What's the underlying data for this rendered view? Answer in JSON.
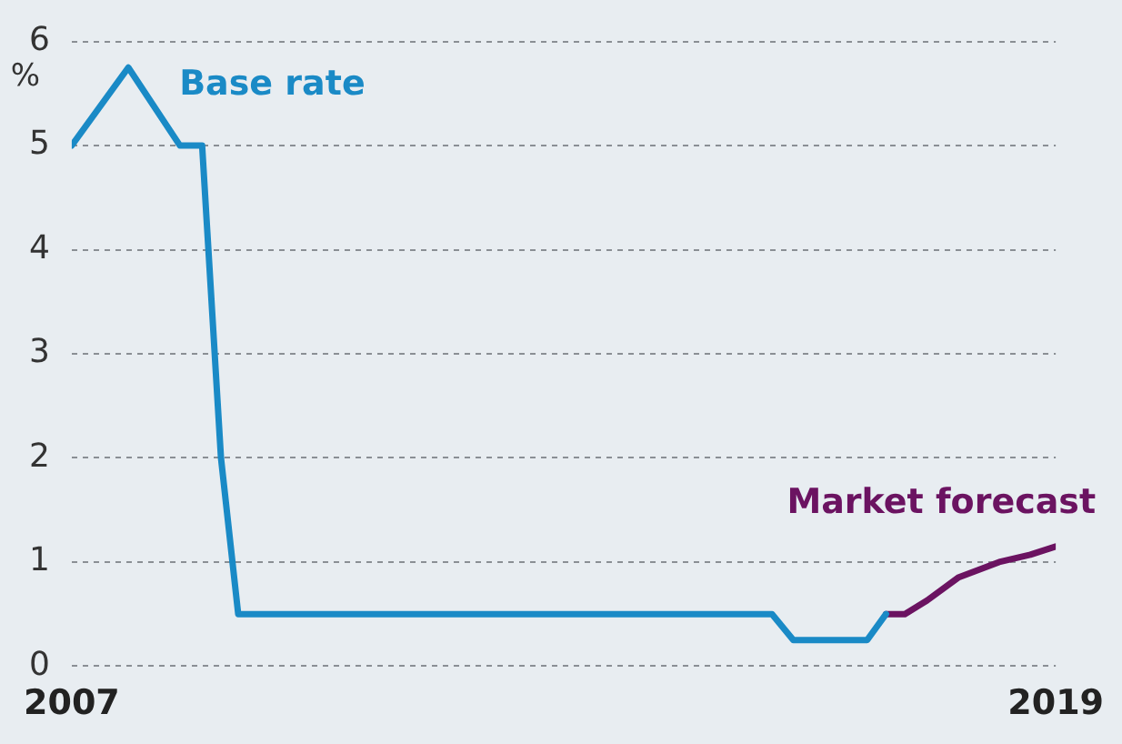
{
  "chart_data": {
    "type": "line",
    "ylabel": "%",
    "series": [
      {
        "name": "Base rate",
        "color": "#1a8ac6",
        "x": [
          2007.0,
          2007.69,
          2008.32,
          2008.59,
          2008.82,
          2009.03,
          2015.54,
          2015.8,
          2016.7,
          2016.93
        ],
        "values": [
          5.0,
          5.75,
          5.0,
          5.0,
          2.0,
          0.5,
          0.5,
          0.25,
          0.25,
          0.5
        ]
      },
      {
        "name": "Market forecast",
        "color": "#6b1361",
        "x": [
          2016.93,
          2017.16,
          2017.43,
          2017.81,
          2018.31,
          2018.69,
          2019.0
        ],
        "values": [
          0.5,
          0.5,
          0.63,
          0.85,
          1.0,
          1.07,
          1.15
        ]
      }
    ],
    "xlim": [
      2007,
      2019
    ],
    "xticks": [
      2007,
      2019
    ],
    "ylim": [
      0,
      6
    ],
    "yticks": [
      0,
      1,
      2,
      3,
      4,
      5,
      6
    ],
    "grid": "y",
    "legend": false,
    "marker": "none",
    "line_style": "solid"
  }
}
